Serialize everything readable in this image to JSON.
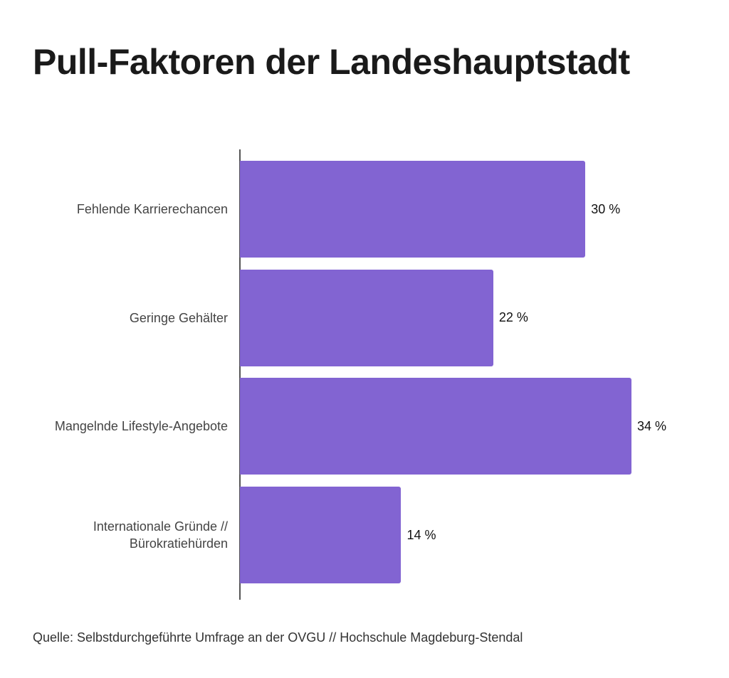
{
  "chart_data": {
    "type": "bar",
    "orientation": "horizontal",
    "title": "Pull-Faktoren der Landeshauptstadt",
    "categories": [
      "Fehlende Karrierechancen",
      "Geringe Gehälter",
      "Mangelnde Lifestyle-Angebote",
      "Internationale Gründe // Bürokratiehürden"
    ],
    "values": [
      30,
      22,
      34,
      14
    ],
    "value_labels": [
      "30 %",
      "22 %",
      "34 %",
      "14 %"
    ],
    "color": "#8264d2",
    "source": "Quelle: Selbstdurchgeführte Umfrage an der OVGU // Hochschule Magdeburg-Stendal"
  }
}
